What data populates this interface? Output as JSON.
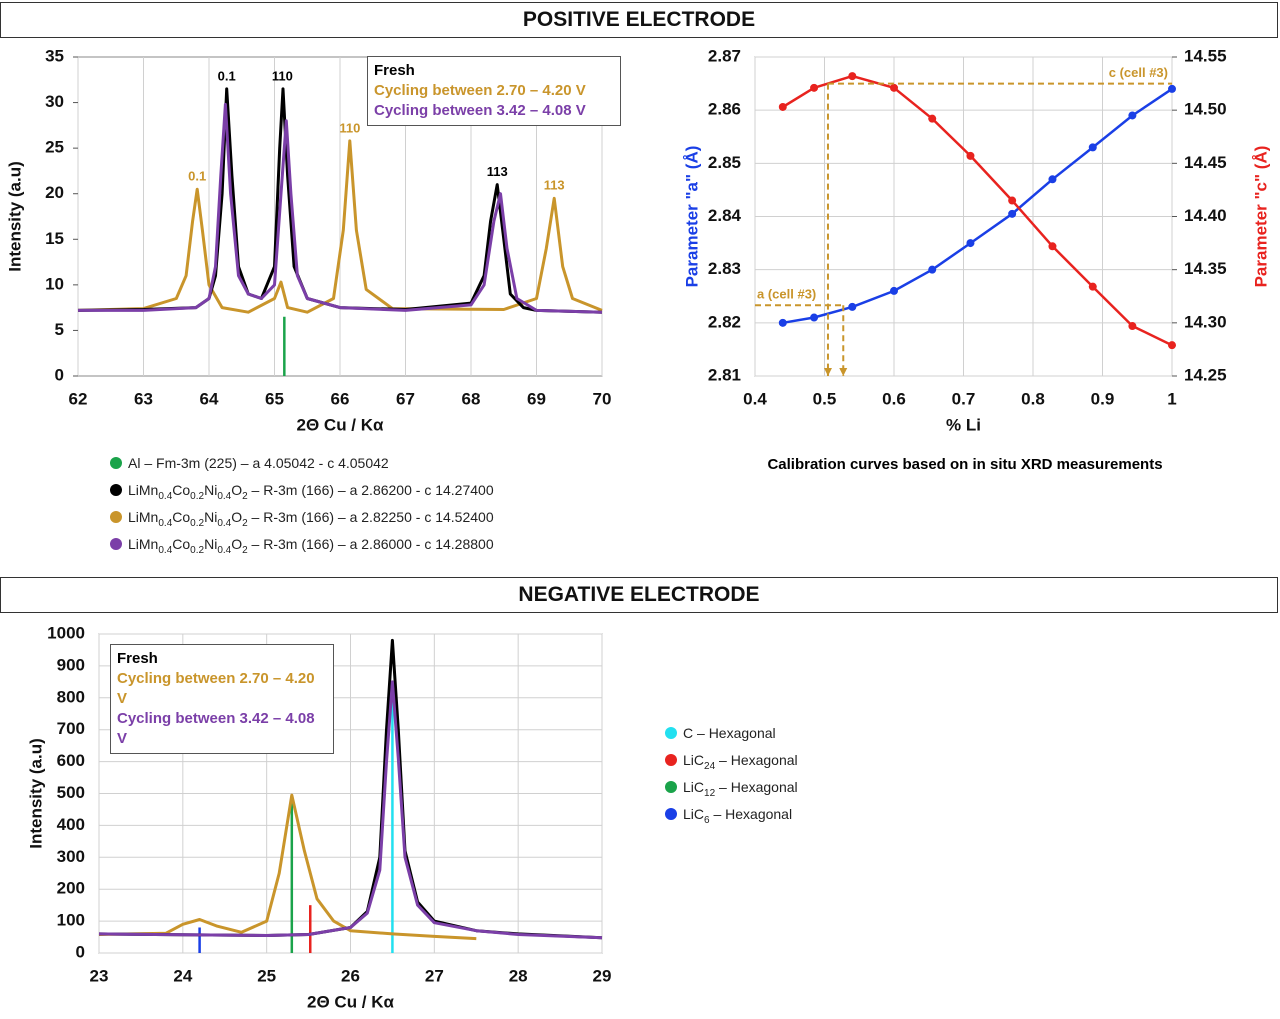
{
  "sections": [
    "POSITIVE ELECTRODE",
    "NEGATIVE ELECTRODE"
  ],
  "chart_data": [
    {
      "type": "line",
      "xlabel": "2Θ Cu / Kα",
      "ylabel": "Intensity (a.u)",
      "xlim": [
        62,
        70
      ],
      "xticks": [
        62,
        63,
        64,
        65,
        66,
        67,
        68,
        69,
        70
      ],
      "ylim": [
        0,
        35
      ],
      "yticks": [
        0,
        5,
        10,
        15,
        20,
        25,
        30,
        35
      ],
      "grid": "x",
      "series": [
        {
          "name": "Fresh",
          "color": "#000000",
          "x": [
            62,
            63,
            63.8,
            64.0,
            64.1,
            64.2,
            64.27,
            64.35,
            64.45,
            64.6,
            64.8,
            65.0,
            65.08,
            65.13,
            65.2,
            65.3,
            65.5,
            66,
            67,
            68,
            68.2,
            68.3,
            68.4,
            68.5,
            68.6,
            68.8,
            69,
            70
          ],
          "values": [
            7.2,
            7.3,
            7.5,
            8.5,
            11,
            20,
            31.5,
            22,
            12,
            9,
            8.5,
            12,
            25,
            31.5,
            22,
            12,
            8.5,
            7.5,
            7.3,
            8,
            11,
            17,
            21,
            15,
            9,
            7.5,
            7.2,
            7
          ]
        },
        {
          "name": "Cycling between 2.70 – 4.20 V",
          "color": "#c9952b",
          "x": [
            62,
            63,
            63.5,
            63.65,
            63.75,
            63.82,
            63.9,
            64.0,
            64.2,
            64.6,
            65.0,
            65.1,
            65.2,
            65.5,
            65.9,
            66.05,
            66.15,
            66.25,
            66.4,
            66.8,
            68.5,
            69.0,
            69.15,
            69.27,
            69.4,
            69.55,
            70
          ],
          "values": [
            7.2,
            7.4,
            8.5,
            11,
            17,
            20.5,
            16,
            10,
            7.5,
            7,
            8.5,
            10.3,
            7.5,
            7,
            8.5,
            16,
            25.8,
            16,
            9.5,
            7.4,
            7.3,
            8.5,
            14,
            19.5,
            12,
            8.5,
            7.2
          ]
        },
        {
          "name": "Cycling between 3.42 – 4.08 V",
          "color": "#7b3fa8",
          "x": [
            62,
            63,
            63.8,
            64.0,
            64.1,
            64.18,
            64.25,
            64.33,
            64.45,
            64.6,
            64.8,
            65.0,
            65.1,
            65.18,
            65.25,
            65.35,
            65.5,
            66,
            67,
            68,
            68.2,
            68.35,
            68.45,
            68.55,
            68.7,
            69,
            70
          ],
          "values": [
            7.2,
            7.2,
            7.5,
            8.5,
            12,
            22,
            29.8,
            20,
            11,
            9,
            8.5,
            10,
            20,
            28,
            20,
            11,
            8.5,
            7.5,
            7.2,
            7.8,
            10,
            17,
            20,
            14,
            8.5,
            7.2,
            7
          ]
        }
      ],
      "annotations": [
        {
          "text": "0.1",
          "x": 64.27,
          "y": 31.5,
          "color": "#000000"
        },
        {
          "text": "110",
          "x": 65.12,
          "y": 31.5,
          "color": "#000000"
        },
        {
          "text": "113",
          "x": 68.4,
          "y": 21,
          "color": "#000000"
        },
        {
          "text": "0.1",
          "x": 63.82,
          "y": 20.5,
          "color": "#c9952b"
        },
        {
          "text": "110",
          "x": 66.15,
          "y": 25.8,
          "color": "#c9952b"
        },
        {
          "text": "113",
          "x": 69.27,
          "y": 19.5,
          "color": "#c9952b"
        }
      ],
      "phases": [
        {
          "color": "#1aa34a",
          "formula": [
            "Al"
          ],
          "rest": " – Fm-3m (225) – a 4.05042 - c 4.05042",
          "peak_x": 65.15,
          "peak_height": 6.5
        },
        {
          "color": "#000000",
          "formula": [
            "LiMn",
            "0.4",
            "Co",
            "0.2",
            "Ni",
            "0.4",
            "O",
            "2"
          ],
          "rest": " – R-3m (166) – a 2.86200 - c 14.27400"
        },
        {
          "color": "#c9952b",
          "formula": [
            "LiMn",
            "0.4",
            "Co",
            "0.2",
            "Ni",
            "0.4",
            "O",
            "2"
          ],
          "rest": " – R-3m (166) – a 2.82250 - c 14.52400"
        },
        {
          "color": "#7b3fa8",
          "formula": [
            "LiMn",
            "0.4",
            "Co",
            "0.2",
            "Ni",
            "0.4",
            "O",
            "2"
          ],
          "rest": " – R-3m (166) – a 2.86000 - c 14.28800"
        }
      ]
    },
    {
      "type": "line",
      "xlabel": "% Li",
      "ylabel": "Parameter \"a\" (Å)",
      "y2label": "Parameter \"c\" (Å)",
      "caption": "Calibration curves based on in situ XRD measurements",
      "xlim": [
        0.4,
        1
      ],
      "xticks": [
        0.4,
        0.5,
        0.6,
        0.7,
        0.8,
        0.9,
        1
      ],
      "ylim": [
        2.81,
        2.87
      ],
      "yticks": [
        2.81,
        2.82,
        2.83,
        2.84,
        2.85,
        2.86,
        2.87
      ],
      "y2lim": [
        14.25,
        14.55
      ],
      "y2ticks": [
        14.25,
        {
          "value": 14.3,
          "label": "14.30"
        },
        14.35,
        {
          "value": 14.4,
          "label": "14.40"
        },
        14.45,
        {
          "value": 14.5,
          "label": "14.50"
        },
        14.55
      ],
      "grid": "both",
      "markers_on_points": true,
      "series": [
        {
          "color": "#1a3fe6",
          "axis": "y",
          "x": [
            0.44,
            0.485,
            0.54,
            0.6,
            0.655,
            0.71,
            0.77,
            0.828,
            0.886,
            0.943,
            1
          ],
          "values": [
            2.82,
            2.821,
            2.823,
            2.826,
            2.83,
            2.835,
            2.8405,
            2.847,
            2.853,
            2.859,
            2.864
          ]
        },
        {
          "color": "#e8231f",
          "axis": "y2",
          "x": [
            0.44,
            0.485,
            0.54,
            0.6,
            0.655,
            0.71,
            0.77,
            0.828,
            0.886,
            0.943,
            1
          ],
          "values": [
            14.503,
            14.521,
            14.532,
            14.521,
            14.492,
            14.457,
            14.415,
            14.372,
            14.334,
            14.297,
            14.279
          ]
        }
      ],
      "cell_markers": [
        {
          "label": "a (cell #3)",
          "axis": "y",
          "value": 2.8233,
          "x": 0.527,
          "side": "left"
        },
        {
          "label": "c (cell #3)",
          "axis": "y2",
          "value": 14.525,
          "x": 0.505,
          "side": "right"
        }
      ],
      "marker_color": "#c9952b"
    },
    {
      "type": "line",
      "xlabel": "2Θ Cu / Kα",
      "ylabel": "Intensity (a.u)",
      "xlim": [
        23,
        29
      ],
      "xticks": [
        23,
        24,
        25,
        26,
        27,
        28,
        29
      ],
      "ylim": [
        0,
        1000
      ],
      "yticks": [
        0,
        100,
        200,
        300,
        400,
        500,
        600,
        700,
        800,
        900,
        1000
      ],
      "grid": "both",
      "series": [
        {
          "name": "Fresh",
          "color": "#000000",
          "x": [
            23,
            24,
            25,
            25.5,
            26,
            26.2,
            26.35,
            26.43,
            26.5,
            26.57,
            26.65,
            26.8,
            27,
            27.5,
            28,
            29
          ],
          "values": [
            60,
            57,
            55,
            58,
            80,
            130,
            300,
            700,
            980,
            700,
            320,
            160,
            100,
            70,
            60,
            48
          ]
        },
        {
          "name": "Cycling between 2.70 – 4.20 V",
          "color": "#c9952b",
          "x": [
            23,
            23.8,
            24.0,
            24.2,
            24.4,
            24.7,
            25.0,
            25.15,
            25.3,
            25.45,
            25.6,
            25.8,
            26.0,
            26.5,
            27,
            27.5
          ],
          "values": [
            58,
            62,
            90,
            105,
            85,
            65,
            100,
            250,
            495,
            320,
            170,
            100,
            70,
            60,
            52,
            45
          ]
        },
        {
          "name": "Cycling between 3.42 – 4.08 V",
          "color": "#7b3fa8",
          "x": [
            23,
            24,
            25,
            25.5,
            26,
            26.2,
            26.35,
            26.43,
            26.5,
            26.57,
            26.65,
            26.8,
            27,
            27.5,
            28,
            29
          ],
          "values": [
            60,
            57,
            55,
            58,
            80,
            125,
            260,
            600,
            850,
            610,
            300,
            150,
            95,
            70,
            58,
            48
          ]
        }
      ],
      "phases": [
        {
          "color": "#22e0f0",
          "formula": [
            "C"
          ],
          "rest": " – Hexagonal",
          "peak_x": 26.5,
          "peak_height": 800
        },
        {
          "color": "#e8231f",
          "formula": [
            "LiC",
            "24"
          ],
          "rest": " – Hexagonal",
          "peak_x": 25.52,
          "peak_height": 150
        },
        {
          "color": "#1aa34a",
          "formula": [
            "LiC",
            "12"
          ],
          "rest": " – Hexagonal",
          "peak_x": 25.3,
          "peak_height": 470
        },
        {
          "color": "#1a3fe6",
          "formula": [
            "LiC",
            "6"
          ],
          "rest": " – Hexagonal",
          "peak_x": 24.2,
          "peak_height": 80
        }
      ]
    }
  ]
}
